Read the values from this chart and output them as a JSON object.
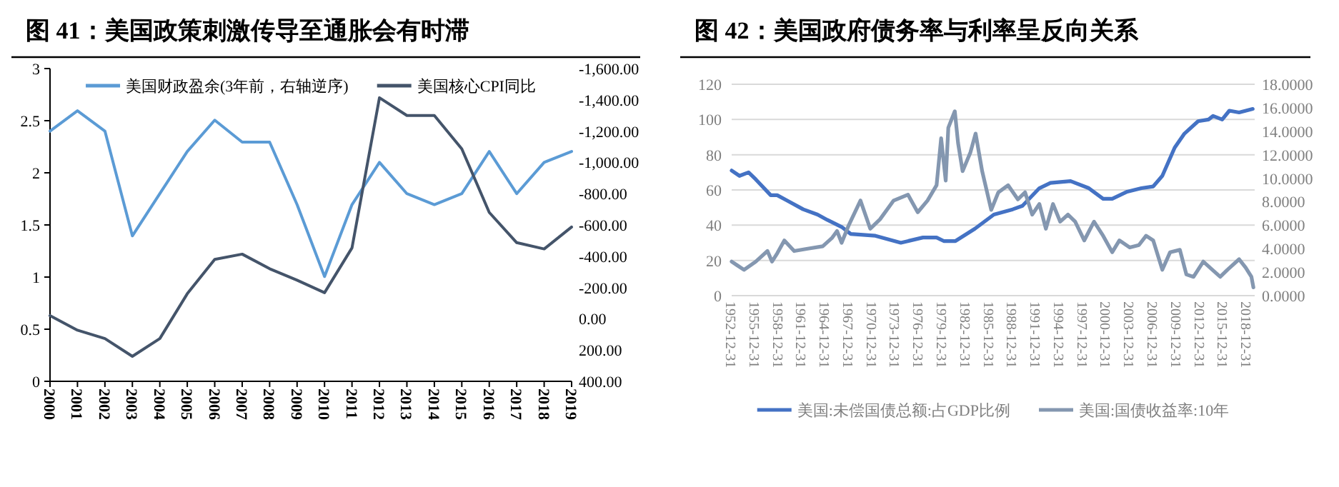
{
  "chart_data": [
    {
      "type": "line",
      "title": "图 41：美国政策刺激传导至通胀会有时滞",
      "categories": [
        "2000",
        "2001",
        "2002",
        "2003",
        "2004",
        "2005",
        "2006",
        "2007",
        "2008",
        "2009",
        "2010",
        "2011",
        "2012",
        "2013",
        "2014",
        "2015",
        "2016",
        "2017",
        "2018",
        "2019"
      ],
      "series": [
        {
          "name": "美国财政盈余(3年前，右轴逆序)",
          "color": "#5b9bd5",
          "axis": "y2",
          "values": [
            -1200,
            -1330,
            -1200,
            -530,
            -800,
            -1070,
            -1270,
            -1130,
            -1130,
            -730,
            -270,
            -730,
            -1000,
            -800,
            -730,
            -800,
            -1070,
            -800,
            -1000,
            -1070
          ]
        },
        {
          "name": "美国核心CPI同比",
          "color": "#44546a",
          "axis": "y",
          "values": [
            0.63,
            0.49,
            0.41,
            0.24,
            0.41,
            0.84,
            1.17,
            1.22,
            1.08,
            0.97,
            0.85,
            1.28,
            2.72,
            2.55,
            2.55,
            2.23,
            1.62,
            1.33,
            1.27,
            1.48
          ]
        }
      ],
      "ylim": [
        0,
        3
      ],
      "yticks": [
        0,
        0.5,
        1,
        1.5,
        2,
        2.5,
        3
      ],
      "y2lim": [
        400,
        -1600
      ],
      "y2ticks": [
        {
          "value": 400,
          "label": "400.00"
        },
        {
          "value": 200,
          "label": "200.00"
        },
        {
          "value": 0,
          "label": "0.00"
        },
        {
          "value": -200,
          "label": "-200.00"
        },
        {
          "value": -400,
          "label": "-400.00"
        },
        {
          "value": -600,
          "label": "-600.00"
        },
        {
          "value": -800,
          "label": "-800.00"
        },
        {
          "value": -1000,
          "label": "-1,000.00"
        },
        {
          "value": -1200,
          "label": "-1,200.00"
        },
        {
          "value": -1400,
          "label": "-1,400.00"
        },
        {
          "value": -1600,
          "label": "-1,600.00"
        }
      ],
      "legend": "top"
    },
    {
      "type": "line",
      "title": "图 42：美国政府债务率与利率呈反向关系",
      "series": [
        {
          "name": "美国:未偿国债总额:占GDP比例",
          "color": "#4472c4",
          "axis": "y",
          "x": [
            "1953-01",
            "1954-01",
            "1955-03",
            "1956-02",
            "1958-01",
            "1958-11",
            "1960-02",
            "1962-03",
            "1964-01",
            "1965-04",
            "1967-02",
            "1968-04",
            "1971-06",
            "1974-09",
            "1977-07",
            "1979-04",
            "1980-03",
            "1981-09",
            "1984-03",
            "1986-08",
            "1989-01",
            "1990-04",
            "1992-06",
            "1993-11",
            "1996-06",
            "1998-10",
            "2000-08",
            "2001-10",
            "2003-09",
            "2005-07",
            "2007-01",
            "2008-03",
            "2009-10",
            "2011-01",
            "2012-10",
            "2014-02",
            "2014-09",
            "2015-11",
            "2016-10",
            "2018-01",
            "2019-10"
          ],
          "values": [
            71,
            68,
            70,
            66,
            57,
            57,
            54,
            49,
            46,
            43,
            39,
            35,
            34,
            30,
            33,
            33,
            31,
            31,
            38,
            46,
            49,
            51,
            61,
            64,
            65,
            61,
            55,
            55,
            59,
            61,
            62,
            68,
            84,
            92,
            99,
            100,
            102,
            100,
            105,
            104,
            106
          ]
        },
        {
          "name": "美国:国债收益率:10年",
          "color": "#8497b0",
          "axis": "y2",
          "x": [
            "1953-01",
            "1953-09",
            "1954-08",
            "1956-02",
            "1957-08",
            "1958-03",
            "1958-11",
            "1959-10",
            "1961-01",
            "1962-10",
            "1964-09",
            "1965-11",
            "1966-07",
            "1967-02",
            "1968-01",
            "1969-07",
            "1970-10",
            "1972-01",
            "1973-10",
            "1975-08",
            "1976-11",
            "1978-02",
            "1979-04",
            "1979-11",
            "1980-06",
            "1980-10",
            "1981-08",
            "1982-01",
            "1982-08",
            "1983-08",
            "1984-04",
            "1985-02",
            "1986-04",
            "1987-03",
            "1988-06",
            "1989-09",
            "1990-08",
            "1991-07",
            "1992-06",
            "1993-04",
            "1994-03",
            "1995-02",
            "1996-02",
            "1997-01",
            "1998-03",
            "1999-06",
            "2000-08",
            "2001-10",
            "2002-09",
            "2004-01",
            "2005-03",
            "2006-02",
            "2007-01",
            "2008-03",
            "2009-03",
            "2010-06",
            "2011-04",
            "2012-03",
            "2013-06",
            "2014-08",
            "2015-08",
            "2016-07",
            "2018-01",
            "2018-11",
            "2019-08",
            "2019-11"
          ],
          "values": [
            2.9,
            2.6,
            2.2,
            2.9,
            3.8,
            2.9,
            3.6,
            4.7,
            3.8,
            4.0,
            4.2,
            4.9,
            5.5,
            4.5,
            6.0,
            8.1,
            5.7,
            6.5,
            8.1,
            8.6,
            7.1,
            8.1,
            9.4,
            13.4,
            9.8,
            14.3,
            15.7,
            13.0,
            10.6,
            12.2,
            13.8,
            10.6,
            7.3,
            8.8,
            9.4,
            8.2,
            8.8,
            6.9,
            7.8,
            5.7,
            7.8,
            6.3,
            6.9,
            6.3,
            4.7,
            6.3,
            5.1,
            3.7,
            4.7,
            4.1,
            4.3,
            5.1,
            4.7,
            2.2,
            3.7,
            3.9,
            1.8,
            1.6,
            2.9,
            2.2,
            1.6,
            2.2,
            3.1,
            2.4,
            1.6,
            0.7
          ]
        }
      ],
      "xlim": [
        "1952-12-31",
        "2019-12-31"
      ],
      "xticks": [
        "1952-12-31",
        "1955-12-31",
        "1958-12-31",
        "1961-12-31",
        "1964-12-31",
        "1967-12-31",
        "1970-12-31",
        "1973-12-31",
        "1976-12-31",
        "1979-12-31",
        "1982-12-31",
        "1985-12-31",
        "1988-12-31",
        "1991-12-31",
        "1994-12-31",
        "1997-12-31",
        "2000-12-31",
        "2003-12-31",
        "2006-12-31",
        "2009-12-31",
        "2012-12-31",
        "2015-12-31",
        "2018-12-31"
      ],
      "ylim": [
        0,
        120
      ],
      "yticks": [
        0,
        20,
        40,
        60,
        80,
        100,
        120
      ],
      "y2lim": [
        0,
        18
      ],
      "y2ticks": [
        {
          "value": 0,
          "label": "0.0000"
        },
        {
          "value": 2,
          "label": "2.0000"
        },
        {
          "value": 4,
          "label": "4.0000"
        },
        {
          "value": 6,
          "label": "6.0000"
        },
        {
          "value": 8,
          "label": "8.0000"
        },
        {
          "value": 10,
          "label": "10.0000"
        },
        {
          "value": 12,
          "label": "12.0000"
        },
        {
          "value": 14,
          "label": "14.0000"
        },
        {
          "value": 16,
          "label": "16.0000"
        },
        {
          "value": 18,
          "label": "18.0000"
        }
      ],
      "grid": "y",
      "legend": "bottom"
    }
  ]
}
